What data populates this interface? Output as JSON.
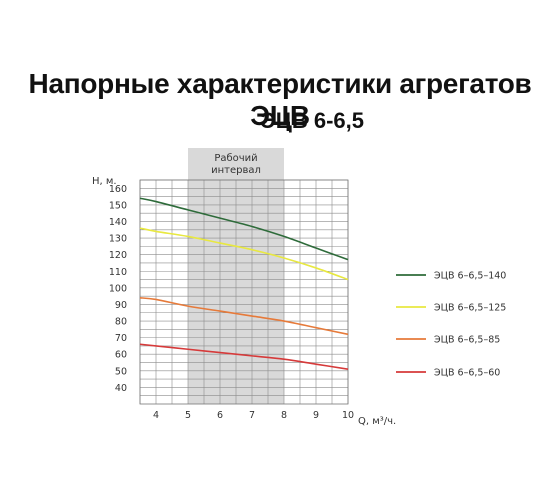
{
  "page": {
    "title": "Напорные характеристики агрегатов ЭЦВ",
    "subtitle": "ЭЦВ 6-6,5"
  },
  "chart_data": {
    "type": "line",
    "title": "Напорные характеристики агрегатов ЭЦВ",
    "subtitle": "ЭЦВ 6-6,5",
    "xlabel": "Q, м³/ч.",
    "ylabel": "Н, м.",
    "xlim": [
      3.5,
      10
    ],
    "ylim": [
      30,
      165
    ],
    "xticks": [
      4,
      5,
      6,
      7,
      8,
      9,
      10
    ],
    "yticks": [
      40,
      50,
      60,
      70,
      80,
      90,
      100,
      110,
      120,
      130,
      140,
      150,
      160
    ],
    "grid": true,
    "legend": "right",
    "highlight": {
      "label_line1": "Рабочий",
      "label_line2": "интервал",
      "x_range": [
        5,
        8
      ]
    },
    "series": [
      {
        "name": "ЭЦВ 6–6,5–140",
        "color": "#2e6b3a",
        "x": [
          3.5,
          4,
          5,
          6,
          7,
          8,
          9,
          10
        ],
        "y": [
          154,
          152,
          147,
          142,
          137,
          131,
          124,
          117
        ]
      },
      {
        "name": "ЭЦВ 6–6,5–125",
        "color": "#e8e840",
        "x": [
          3.5,
          4,
          5,
          6,
          7,
          8,
          9,
          10
        ],
        "y": [
          136,
          134,
          131,
          127,
          123,
          118,
          112,
          105
        ]
      },
      {
        "name": "ЭЦВ 6–6,5–85",
        "color": "#e67a3a",
        "x": [
          3.5,
          4,
          5,
          6,
          7,
          8,
          9,
          10
        ],
        "y": [
          94,
          93,
          89,
          86,
          83,
          80,
          76,
          72
        ]
      },
      {
        "name": "ЭЦВ 6–6,5–60",
        "color": "#d63a3a",
        "x": [
          3.5,
          4,
          5,
          6,
          7,
          8,
          9,
          10
        ],
        "y": [
          66,
          65,
          63,
          61,
          59,
          57,
          54,
          51
        ]
      }
    ]
  }
}
